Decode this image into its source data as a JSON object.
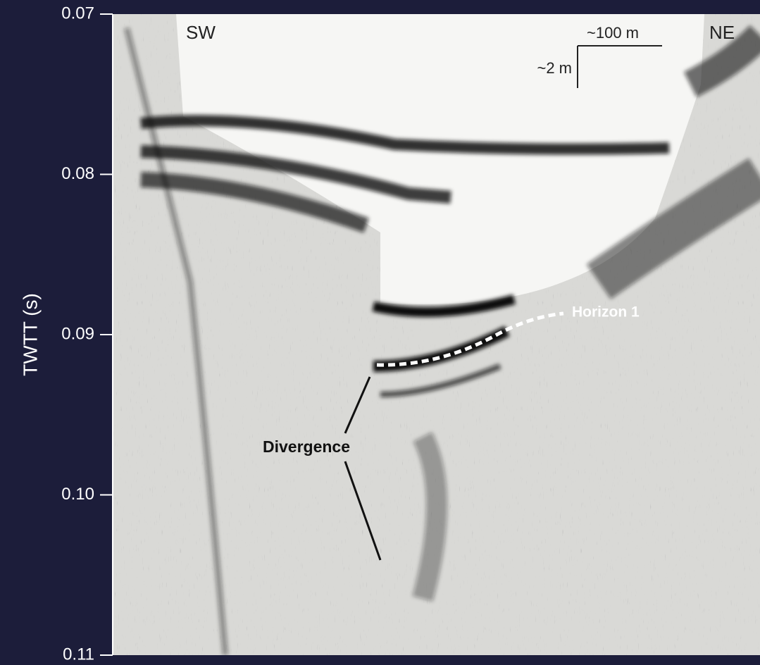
{
  "axis": {
    "label": "TWTT (s)",
    "lim": [
      0.07,
      0.11
    ],
    "ticks": [
      0.07,
      0.08,
      0.09,
      {
        "value": 0.1,
        "label": "0.10"
      },
      0.11
    ]
  },
  "direction_labels": {
    "left": "SW",
    "right": "NE"
  },
  "scale_bar": {
    "horizontal": "~100 m",
    "vertical": "~2 m"
  },
  "annotations": {
    "horizon": "Horizon 1",
    "divergence": "Divergence"
  }
}
